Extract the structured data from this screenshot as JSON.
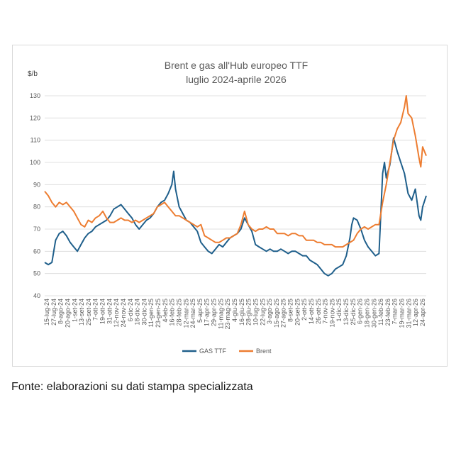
{
  "chart_data": {
    "type": "line",
    "title": "Brent e gas all'Hub europeo TTF",
    "subtitle": "luglio 2024-aprile 2026",
    "ylabel": "$/b",
    "ylim": [
      40,
      130
    ],
    "yticks": [
      40,
      50,
      60,
      70,
      80,
      90,
      100,
      110,
      120,
      130
    ],
    "grid": "horizontal",
    "legend": "bottom",
    "x_tick_labels": [
      "15-lug-24",
      "27-lug-24",
      "8-ago-24",
      "20-ago-24",
      "1-set-24",
      "13-set-24",
      "25-set-24",
      "7-ott-24",
      "19-ott-24",
      "31-ott-24",
      "12-nov-24",
      "24-nov-24",
      "6-dic-24",
      "18-dic-24",
      "30-dic-24",
      "11-gen-25",
      "23-gen-25",
      "4-feb-25",
      "16-feb-25",
      "28-feb-25",
      "12-mar-25",
      "24-mar-25",
      "5-apr-25",
      "17-apr-25",
      "29-apr-25",
      "11-mag-25",
      "23-mag-25",
      "4-giu-25",
      "16-giu-25",
      "28-giu-25",
      "10-lug-25",
      "22-lug-25",
      "3-ago-25",
      "15-ago-25",
      "27-ago-25",
      "8-set-25",
      "20-set-25",
      "2-ott-25",
      "14-ott-25",
      "26-ott-25",
      "7-nov-25",
      "19-nov-25",
      "1-dic-25",
      "13-dic-25",
      "25-dic-25",
      "6-gen-26",
      "18-gen-26",
      "30-gen-26",
      "11-feb-26",
      "23-feb-26",
      "7-mar-26",
      "19-mar-26",
      "31-mar-26",
      "12-apr-26",
      "24-apr-26"
    ],
    "series": [
      {
        "name": "GAS TTF",
        "color": "#1f5f8b",
        "points": [
          [
            0,
            55
          ],
          [
            1,
            54
          ],
          [
            2,
            55
          ],
          [
            2.5,
            60
          ],
          [
            3,
            65
          ],
          [
            4,
            68
          ],
          [
            5,
            69
          ],
          [
            6,
            67
          ],
          [
            7,
            64
          ],
          [
            8,
            62
          ],
          [
            9,
            60
          ],
          [
            10,
            63
          ],
          [
            11,
            66
          ],
          [
            12,
            68
          ],
          [
            13,
            69
          ],
          [
            14,
            71
          ],
          [
            15,
            72
          ],
          [
            16,
            73
          ],
          [
            17,
            74
          ],
          [
            18,
            76
          ],
          [
            19,
            79
          ],
          [
            20,
            80
          ],
          [
            21,
            81
          ],
          [
            22,
            79
          ],
          [
            23,
            77
          ],
          [
            24,
            75
          ],
          [
            25,
            72
          ],
          [
            26,
            70
          ],
          [
            27,
            72
          ],
          [
            28,
            74
          ],
          [
            29,
            75
          ],
          [
            30,
            77
          ],
          [
            31,
            80
          ],
          [
            32,
            82
          ],
          [
            33,
            83
          ],
          [
            34,
            86
          ],
          [
            35,
            90
          ],
          [
            35.5,
            96
          ],
          [
            36,
            88
          ],
          [
            37,
            80
          ],
          [
            38,
            77
          ],
          [
            39,
            74
          ],
          [
            40,
            73
          ],
          [
            41,
            71
          ],
          [
            42,
            69
          ],
          [
            43,
            64
          ],
          [
            44,
            62
          ],
          [
            45,
            60
          ],
          [
            46,
            59
          ],
          [
            47,
            61
          ],
          [
            48,
            63
          ],
          [
            49,
            62
          ],
          [
            50,
            64
          ],
          [
            51,
            66
          ],
          [
            52,
            67
          ],
          [
            53,
            68
          ],
          [
            54,
            70
          ],
          [
            55,
            75
          ],
          [
            56,
            72
          ],
          [
            57,
            69
          ],
          [
            58,
            63
          ],
          [
            59,
            62
          ],
          [
            60,
            61
          ],
          [
            61,
            60
          ],
          [
            62,
            61
          ],
          [
            63,
            60
          ],
          [
            64,
            60
          ],
          [
            65,
            61
          ],
          [
            66,
            60
          ],
          [
            67,
            59
          ],
          [
            68,
            60
          ],
          [
            69,
            60
          ],
          [
            70,
            59
          ],
          [
            71,
            58
          ],
          [
            72,
            58
          ],
          [
            73,
            56
          ],
          [
            74,
            55
          ],
          [
            75,
            54
          ],
          [
            76,
            52
          ],
          [
            77,
            50
          ],
          [
            78,
            49
          ],
          [
            79,
            50
          ],
          [
            80,
            52
          ],
          [
            81,
            53
          ],
          [
            82,
            54
          ],
          [
            83,
            58
          ],
          [
            84,
            66
          ],
          [
            84.5,
            72
          ],
          [
            85,
            75
          ],
          [
            86,
            74
          ],
          [
            87,
            70
          ],
          [
            88,
            65
          ],
          [
            89,
            62
          ],
          [
            90,
            60
          ],
          [
            91,
            58
          ],
          [
            92,
            59
          ],
          [
            93,
            95
          ],
          [
            93.5,
            100
          ],
          [
            94,
            93
          ],
          [
            95,
            99
          ],
          [
            96,
            111
          ],
          [
            97,
            105
          ],
          [
            98,
            100
          ],
          [
            99,
            95
          ],
          [
            100,
            86
          ],
          [
            101,
            83
          ],
          [
            102,
            88
          ],
          [
            103,
            76
          ],
          [
            103.5,
            74
          ],
          [
            104,
            80
          ],
          [
            105,
            85
          ]
        ]
      },
      {
        "name": "Brent",
        "color": "#ed7d31",
        "points": [
          [
            0,
            87
          ],
          [
            1,
            85
          ],
          [
            2,
            82
          ],
          [
            3,
            80
          ],
          [
            4,
            82
          ],
          [
            5,
            81
          ],
          [
            6,
            82
          ],
          [
            7,
            80
          ],
          [
            8,
            78
          ],
          [
            9,
            75
          ],
          [
            10,
            72
          ],
          [
            11,
            71
          ],
          [
            12,
            74
          ],
          [
            13,
            73
          ],
          [
            14,
            75
          ],
          [
            15,
            76
          ],
          [
            16,
            78
          ],
          [
            17,
            75
          ],
          [
            18,
            73
          ],
          [
            19,
            73
          ],
          [
            20,
            74
          ],
          [
            21,
            75
          ],
          [
            22,
            74
          ],
          [
            23,
            74
          ],
          [
            24,
            73
          ],
          [
            25,
            74
          ],
          [
            26,
            73
          ],
          [
            27,
            74
          ],
          [
            28,
            75
          ],
          [
            29,
            76
          ],
          [
            30,
            77
          ],
          [
            31,
            80
          ],
          [
            32,
            81
          ],
          [
            33,
            82
          ],
          [
            34,
            80
          ],
          [
            35,
            78
          ],
          [
            36,
            76
          ],
          [
            37,
            76
          ],
          [
            38,
            75
          ],
          [
            39,
            74
          ],
          [
            40,
            73
          ],
          [
            41,
            72
          ],
          [
            42,
            71
          ],
          [
            43,
            72
          ],
          [
            44,
            67
          ],
          [
            45,
            66
          ],
          [
            46,
            65
          ],
          [
            47,
            64
          ],
          [
            48,
            64
          ],
          [
            49,
            65
          ],
          [
            50,
            66
          ],
          [
            51,
            66
          ],
          [
            52,
            67
          ],
          [
            53,
            68
          ],
          [
            54,
            72
          ],
          [
            55,
            78
          ],
          [
            56,
            72
          ],
          [
            57,
            70
          ],
          [
            58,
            69
          ],
          [
            59,
            70
          ],
          [
            60,
            70
          ],
          [
            61,
            71
          ],
          [
            62,
            70
          ],
          [
            63,
            70
          ],
          [
            64,
            68
          ],
          [
            65,
            68
          ],
          [
            66,
            68
          ],
          [
            67,
            67
          ],
          [
            68,
            68
          ],
          [
            69,
            68
          ],
          [
            70,
            67
          ],
          [
            71,
            67
          ],
          [
            72,
            65
          ],
          [
            73,
            65
          ],
          [
            74,
            65
          ],
          [
            75,
            64
          ],
          [
            76,
            64
          ],
          [
            77,
            63
          ],
          [
            78,
            63
          ],
          [
            79,
            63
          ],
          [
            80,
            62
          ],
          [
            81,
            62
          ],
          [
            82,
            62
          ],
          [
            83,
            63
          ],
          [
            84,
            64
          ],
          [
            85,
            65
          ],
          [
            86,
            68
          ],
          [
            87,
            70
          ],
          [
            88,
            71
          ],
          [
            89,
            70
          ],
          [
            90,
            71
          ],
          [
            91,
            72
          ],
          [
            92,
            72
          ],
          [
            93,
            82
          ],
          [
            94,
            90
          ],
          [
            95,
            100
          ],
          [
            96,
            110
          ],
          [
            97,
            115
          ],
          [
            98,
            118
          ],
          [
            99,
            125
          ],
          [
            99.5,
            130
          ],
          [
            100,
            122
          ],
          [
            101,
            120
          ],
          [
            102,
            112
          ],
          [
            103,
            102
          ],
          [
            103.5,
            98
          ],
          [
            104,
            107
          ],
          [
            105,
            103
          ]
        ]
      }
    ]
  },
  "source_note": "Fonte: elaborazioni su dati stampa specializzata"
}
